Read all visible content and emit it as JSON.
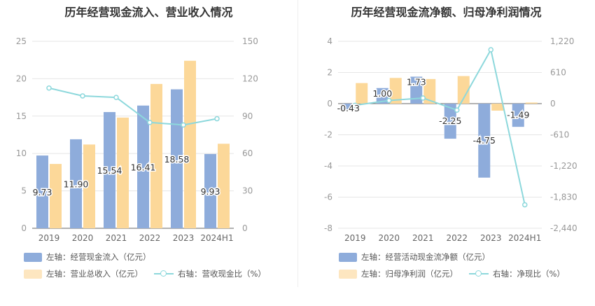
{
  "charts": [
    {
      "title": "历年经营现金流入、营业收入情况",
      "legend": {
        "bar1": "左轴：经营现金流入（亿元）",
        "bar2": "左轴：营业总收入（亿元）",
        "line": "右轴：营收现金比（%）"
      }
    },
    {
      "title": "历年经营现金流净额、归母净利润情况",
      "legend": {
        "bar1": "左轴：经营活动现金流净额（亿元）",
        "bar2": "左轴：归母净利润（亿元）",
        "line": "右轴：净现比（%）"
      }
    }
  ],
  "colors": {
    "bar1": "#8eacdb",
    "bar2": "#fcd899",
    "line": "#8dd8dc",
    "axis": "#999999",
    "grid": "#e6e6e6"
  },
  "chart_data": [
    {
      "type": "bar",
      "title": "历年经营现金流入、营业收入情况",
      "categories": [
        "2019",
        "2020",
        "2021",
        "2022",
        "2023",
        "2024H1"
      ],
      "y_left": {
        "lim": [
          0,
          25
        ],
        "ticks": [
          "0",
          "5",
          "10",
          "15",
          "20",
          "25"
        ],
        "values": [
          0,
          5,
          10,
          15,
          20,
          25
        ]
      },
      "y_right": {
        "lim": [
          0,
          150
        ],
        "ticks": [
          "0",
          "30",
          "60",
          "90",
          "120",
          "150"
        ],
        "values": [
          0,
          30,
          60,
          90,
          120,
          150
        ]
      },
      "series": [
        {
          "name": "左轴：经营现金流入（亿元）",
          "axis": "left",
          "kind": "bar",
          "values": [
            9.73,
            11.9,
            15.54,
            16.41,
            18.58,
            9.93
          ],
          "labels": [
            "9.73",
            "11.90",
            "15.54",
            "16.41",
            "18.58",
            "9.93"
          ]
        },
        {
          "name": "左轴：营业总收入（亿元）",
          "axis": "left",
          "kind": "bar",
          "values": [
            8.6,
            11.2,
            14.8,
            19.3,
            22.4,
            11.3
          ]
        },
        {
          "name": "右轴：营收现金比（%）",
          "axis": "right",
          "kind": "line",
          "values": [
            112.5,
            106.2,
            105.0,
            84.9,
            82.9,
            87.9
          ]
        }
      ]
    },
    {
      "type": "bar",
      "title": "历年经营现金流净额、归母净利润情况",
      "categories": [
        "2019",
        "2020",
        "2021",
        "2022",
        "2023",
        "2024H1"
      ],
      "y_left": {
        "lim": [
          -8,
          4
        ],
        "ticks": [
          "-8",
          "-6",
          "-4",
          "-2",
          "0",
          "2",
          "4"
        ],
        "values": [
          -8,
          -6,
          -4,
          -2,
          0,
          2,
          4
        ]
      },
      "y_right": {
        "lim": [
          -2440,
          1220
        ],
        "ticks": [
          "-2,440",
          "-1,830",
          "-1,220",
          "-610",
          "0",
          "610",
          "1,220"
        ],
        "values": [
          -2440,
          -1830,
          -1220,
          -610,
          0,
          610,
          1220
        ]
      },
      "series": [
        {
          "name": "左轴：经营活动现金流净额（亿元）",
          "axis": "left",
          "kind": "bar",
          "values": [
            -0.43,
            1.0,
            1.73,
            -2.25,
            -4.75,
            -1.49
          ],
          "labels": [
            "-0.43",
            "1.00",
            "1.73",
            "-2.25",
            "-4.75",
            "-1.49"
          ]
        },
        {
          "name": "左轴：归母净利润（亿元）",
          "axis": "left",
          "kind": "bar",
          "values": [
            1.32,
            1.65,
            1.58,
            1.77,
            -0.45,
            0.07
          ]
        },
        {
          "name": "右轴：净现比（%）",
          "axis": "right",
          "kind": "line",
          "values": [
            -33,
            61,
            110,
            -127,
            1055,
            -1980
          ]
        }
      ]
    }
  ]
}
